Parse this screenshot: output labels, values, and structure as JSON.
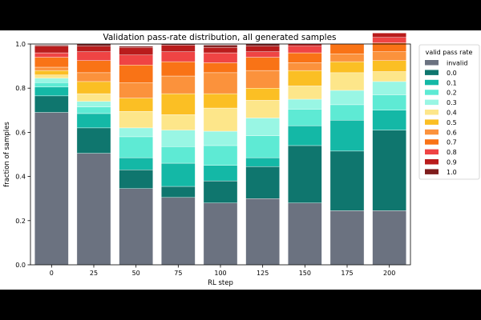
{
  "chart_data": {
    "type": "bar",
    "stacked": true,
    "title": "Validation pass-rate distribution, all generated samples",
    "xlabel": "RL step",
    "ylabel": "fraction of samples",
    "ylim": [
      0,
      1.0
    ],
    "yticks": [
      "0.0",
      "0.2",
      "0.4",
      "0.6",
      "0.8",
      "1.0"
    ],
    "categories": [
      "0",
      "25",
      "50",
      "75",
      "100",
      "125",
      "150",
      "175",
      "200"
    ],
    "grid": false,
    "legend": {
      "title": "valid pass rate",
      "placement": "right-outside"
    },
    "series": [
      {
        "name": "invalid",
        "color": "#6b7280",
        "values": [
          0.69,
          0.505,
          0.345,
          0.305,
          0.28,
          0.3,
          0.28,
          0.245,
          0.245
        ]
      },
      {
        "name": "0.0",
        "color": "#0f766e",
        "values": [
          0.075,
          0.115,
          0.085,
          0.05,
          0.1,
          0.145,
          0.26,
          0.27,
          0.365
        ]
      },
      {
        "name": "0.1",
        "color": "#14b8a6",
        "values": [
          0.04,
          0.065,
          0.055,
          0.105,
          0.07,
          0.04,
          0.09,
          0.14,
          0.09
        ]
      },
      {
        "name": "0.2",
        "color": "#5eead4",
        "values": [
          0.02,
          0.03,
          0.095,
          0.075,
          0.09,
          0.1,
          0.075,
          0.07,
          0.07
        ]
      },
      {
        "name": "0.3",
        "color": "#99f6e4",
        "values": [
          0.02,
          0.025,
          0.04,
          0.075,
          0.065,
          0.08,
          0.045,
          0.065,
          0.06
        ]
      },
      {
        "name": "0.4",
        "color": "#fde68a",
        "values": [
          0.015,
          0.035,
          0.075,
          0.07,
          0.105,
          0.08,
          0.06,
          0.08,
          0.045
        ]
      },
      {
        "name": "0.5",
        "color": "#fbbf24",
        "values": [
          0.02,
          0.055,
          0.06,
          0.095,
          0.065,
          0.055,
          0.07,
          0.05,
          0.05
        ]
      },
      {
        "name": "0.6",
        "color": "#fb923c",
        "values": [
          0.015,
          0.04,
          0.07,
          0.08,
          0.095,
          0.08,
          0.035,
          0.035,
          0.04
        ]
      },
      {
        "name": "0.7",
        "color": "#f97316",
        "values": [
          0.045,
          0.055,
          0.08,
          0.065,
          0.045,
          0.06,
          0.045,
          0.045,
          0.04
        ]
      },
      {
        "name": "0.8",
        "color": "#ef4444",
        "values": [
          0.02,
          0.04,
          0.045,
          0.045,
          0.045,
          0.025,
          0.03,
          0.0,
          0.025
        ]
      },
      {
        "name": "0.9",
        "color": "#b91c1c",
        "values": [
          0.03,
          0.025,
          0.035,
          0.03,
          0.025,
          0.025,
          0.01,
          0.0,
          0.02
        ]
      },
      {
        "name": "1.0",
        "color": "#7f1d1d",
        "values": [
          0.005,
          0.01,
          0.005,
          0.005,
          0.01,
          0.01,
          0.0,
          0.0,
          0.0
        ]
      }
    ]
  }
}
